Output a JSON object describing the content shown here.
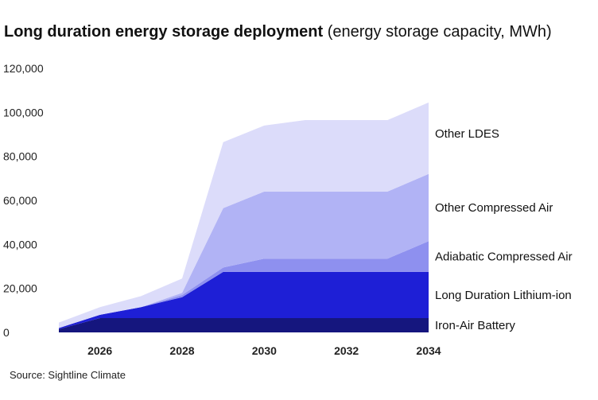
{
  "chart_data": {
    "type": "area",
    "stacked": true,
    "title": "Long duration energy storage deployment",
    "subtitle": "(energy storage capacity, MWh)",
    "xlabel": "",
    "ylabel": "",
    "x": [
      2025,
      2026,
      2027,
      2028,
      2029,
      2030,
      2031,
      2032,
      2033,
      2034
    ],
    "x_ticks": [
      "2026",
      "2028",
      "2030",
      "2032",
      "2034"
    ],
    "y_ticks": [
      "0",
      "20,000",
      "40,000",
      "60,000",
      "80,000",
      "100,000",
      "120,000"
    ],
    "ylim": [
      0,
      120000
    ],
    "xlim": [
      2025,
      2034
    ],
    "grid": false,
    "legend": "inline-right",
    "series": [
      {
        "name": "Iron-Air Battery",
        "color": "#15167e",
        "values": [
          1500,
          6500,
          6500,
          6500,
          6500,
          6500,
          6500,
          6500,
          6500,
          6500
        ]
      },
      {
        "name": "Long Duration Lithium-ion",
        "color": "#1e1fd6",
        "values": [
          500,
          1500,
          5000,
          9500,
          21000,
          21000,
          21000,
          21000,
          21000,
          21000
        ]
      },
      {
        "name": "Adiabatic Compressed Air",
        "color": "#8e90ef",
        "values": [
          0,
          0,
          0,
          1000,
          2000,
          6000,
          6000,
          6000,
          6000,
          14000
        ]
      },
      {
        "name": "Other Compressed Air",
        "color": "#b1b3f5",
        "values": [
          0,
          0,
          0,
          1000,
          27000,
          30500,
          30500,
          30500,
          30500,
          30500
        ]
      },
      {
        "name": "Other LDES",
        "color": "#dcdcfa",
        "values": [
          2500,
          3500,
          5000,
          6500,
          30000,
          30000,
          32500,
          32500,
          32500,
          32500
        ]
      }
    ],
    "source": "Source: Sightline Climate"
  }
}
